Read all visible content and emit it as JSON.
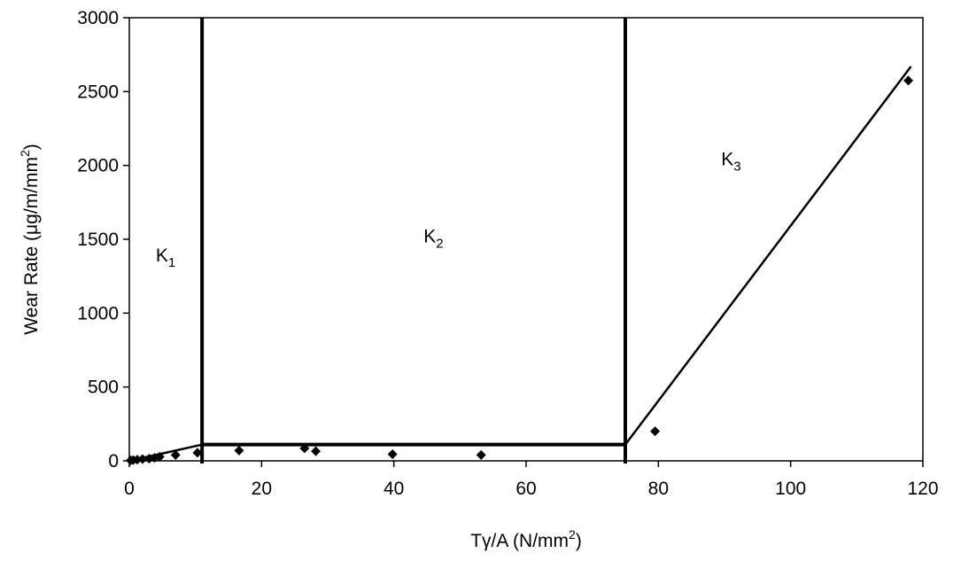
{
  "chart_data": {
    "type": "scatter",
    "title": "",
    "xlabel": {
      "pre": "Tγ/A (N/mm",
      "sup": "2",
      "post": ")"
    },
    "ylabel": {
      "pre": "Wear Rate (μg/m/mm",
      "sup": "2",
      "post": ")"
    },
    "xlim": [
      0,
      120
    ],
    "ylim": [
      0,
      3000
    ],
    "x_ticks": [
      0,
      20,
      40,
      60,
      80,
      100,
      120
    ],
    "y_ticks": [
      0,
      500,
      1000,
      1500,
      2000,
      2500,
      3000
    ],
    "grid": false,
    "legend": "none",
    "series": [
      {
        "marker": "diamond",
        "color": "#000000",
        "points": [
          [
            0.2,
            3
          ],
          [
            0.6,
            5
          ],
          [
            1.2,
            8
          ],
          [
            2.0,
            12
          ],
          [
            3.0,
            15
          ],
          [
            3.8,
            20
          ],
          [
            4.6,
            28
          ],
          [
            7.0,
            40
          ],
          [
            10.3,
            55
          ],
          [
            16.6,
            70
          ],
          [
            26.5,
            85
          ],
          [
            28.2,
            65
          ],
          [
            39.8,
            45
          ],
          [
            53.2,
            40
          ],
          [
            79.5,
            200
          ],
          [
            117.8,
            2575
          ]
        ]
      }
    ],
    "fit_lines": [
      {
        "points": [
          [
            0,
            0
          ],
          [
            11,
            110
          ]
        ],
        "width": "thin"
      },
      {
        "points": [
          [
            11,
            110
          ],
          [
            75,
            110
          ]
        ],
        "width": "thick"
      },
      {
        "points": [
          [
            75,
            110
          ],
          [
            118.2,
            2670
          ]
        ],
        "width": "thin"
      }
    ],
    "boundaries": [
      11,
      75
    ],
    "regions": [
      {
        "label": "K",
        "sub": "1",
        "x": 5.5,
        "y": 1350
      },
      {
        "label": "K",
        "sub": "2",
        "x": 46,
        "y": 1480
      },
      {
        "label": "K",
        "sub": "3",
        "x": 91,
        "y": 2000
      }
    ]
  }
}
